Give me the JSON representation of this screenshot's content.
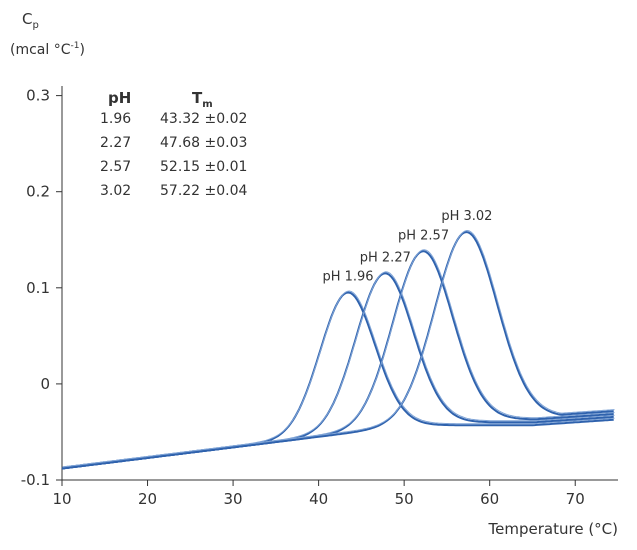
{
  "chart_data": {
    "type": "line",
    "title": "",
    "ylabel_main": "C",
    "ylabel_sub": "p",
    "ylabel_units": "(mcal °C",
    "ylabel_units_exp": "-1",
    "ylabel_units_close": ")",
    "xlabel": "Temperature (°C)",
    "xlim": [
      10,
      75
    ],
    "ylim": [
      -0.1,
      0.31
    ],
    "xticks": [
      10,
      20,
      30,
      40,
      50,
      60,
      70
    ],
    "xtick_labels": [
      "10",
      "20",
      "30",
      "40",
      "50",
      "60",
      "70"
    ],
    "yticks": [
      -0.1,
      0,
      0.1,
      0.2,
      0.3
    ],
    "ytick_labels": [
      "-0.1",
      "0",
      "0.1",
      "0.2",
      "0.3"
    ],
    "line_color": "#2f62ad",
    "line_color_light": "#7ea3d6",
    "table": {
      "header_ph": "pH",
      "header_tm_main": "T",
      "header_tm_sub": "m",
      "rows": [
        {
          "ph": "1.96",
          "tm": "43.32 ±0.02"
        },
        {
          "ph": "2.27",
          "tm": "47.68 ±0.03"
        },
        {
          "ph": "2.57",
          "tm": "52.15 ±0.01"
        },
        {
          "ph": "3.02",
          "tm": "57.22 ±0.04"
        }
      ]
    },
    "series": [
      {
        "name": "pH 1.96",
        "label": "pH 1.96",
        "tm": 43.32,
        "peak": 0.095,
        "base_after": -0.043
      },
      {
        "name": "pH 2.27",
        "label": "pH 2.27",
        "tm": 47.68,
        "peak": 0.115,
        "base_after": -0.04
      },
      {
        "name": "pH 2.57",
        "label": "pH 2.57",
        "tm": 52.15,
        "peak": 0.138,
        "base_after": -0.037
      },
      {
        "name": "pH 3.02",
        "label": "pH 3.02",
        "tm": 57.22,
        "peak": 0.158,
        "base_after": -0.034
      }
    ]
  }
}
